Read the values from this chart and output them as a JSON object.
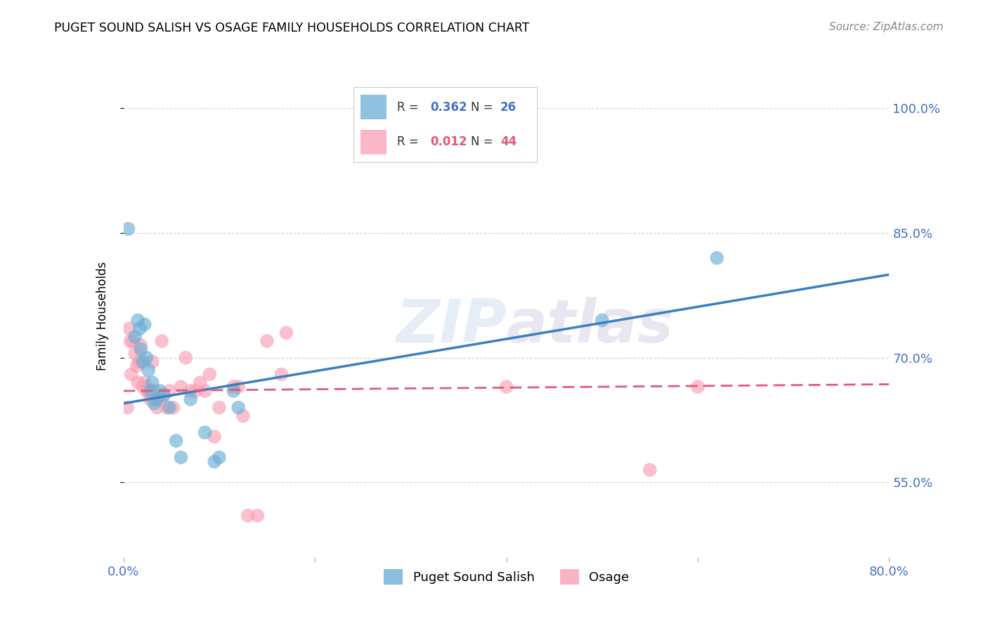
{
  "title": "PUGET SOUND SALISH VS OSAGE FAMILY HOUSEHOLDS CORRELATION CHART",
  "source": "Source: ZipAtlas.com",
  "ylabel": "Family Households",
  "xlim": [
    0.0,
    0.8
  ],
  "ylim": [
    0.46,
    1.04
  ],
  "xticks": [
    0.0,
    0.2,
    0.4,
    0.6,
    0.8
  ],
  "xticklabels": [
    "0.0%",
    "",
    "",
    "",
    "80.0%"
  ],
  "yticks": [
    0.55,
    0.7,
    0.85,
    1.0
  ],
  "yticklabels": [
    "55.0%",
    "70.0%",
    "85.0%",
    "100.0%"
  ],
  "watermark": "ZIPatlas",
  "legend_label1": "Puget Sound Salish",
  "legend_label2": "Osage",
  "blue_color": "#6baed6",
  "pink_color": "#fa9fb5",
  "blue_line_color": "#3a7fc1",
  "pink_line_color": "#e05a7a",
  "puget_x": [
    0.005,
    0.012,
    0.015,
    0.017,
    0.018,
    0.02,
    0.022,
    0.024,
    0.026,
    0.028,
    0.03,
    0.032,
    0.035,
    0.038,
    0.042,
    0.048,
    0.055,
    0.06,
    0.07,
    0.085,
    0.095,
    0.1,
    0.115,
    0.12,
    0.5,
    0.62
  ],
  "puget_y": [
    0.855,
    0.725,
    0.745,
    0.735,
    0.71,
    0.695,
    0.74,
    0.7,
    0.685,
    0.66,
    0.67,
    0.645,
    0.65,
    0.66,
    0.655,
    0.64,
    0.6,
    0.58,
    0.65,
    0.61,
    0.575,
    0.58,
    0.66,
    0.64,
    0.745,
    0.82
  ],
  "osage_x": [
    0.004,
    0.006,
    0.007,
    0.008,
    0.01,
    0.012,
    0.014,
    0.015,
    0.016,
    0.018,
    0.02,
    0.022,
    0.024,
    0.026,
    0.028,
    0.03,
    0.032,
    0.035,
    0.038,
    0.04,
    0.042,
    0.045,
    0.048,
    0.052,
    0.06,
    0.065,
    0.07,
    0.075,
    0.08,
    0.085,
    0.09,
    0.095,
    0.1,
    0.115,
    0.12,
    0.125,
    0.13,
    0.14,
    0.15,
    0.165,
    0.17,
    0.4,
    0.55,
    0.6
  ],
  "osage_y": [
    0.64,
    0.735,
    0.72,
    0.68,
    0.72,
    0.705,
    0.69,
    0.67,
    0.695,
    0.715,
    0.665,
    0.67,
    0.66,
    0.66,
    0.65,
    0.695,
    0.66,
    0.64,
    0.65,
    0.72,
    0.655,
    0.64,
    0.66,
    0.64,
    0.665,
    0.7,
    0.66,
    0.66,
    0.67,
    0.66,
    0.68,
    0.605,
    0.64,
    0.665,
    0.665,
    0.63,
    0.51,
    0.51,
    0.72,
    0.68,
    0.73,
    0.665,
    0.565,
    0.665
  ],
  "blue_trendline_x": [
    0.0,
    0.8
  ],
  "blue_trendline_y": [
    0.645,
    0.8
  ],
  "pink_trendline_x": [
    0.0,
    0.8
  ],
  "pink_trendline_y": [
    0.66,
    0.668
  ]
}
